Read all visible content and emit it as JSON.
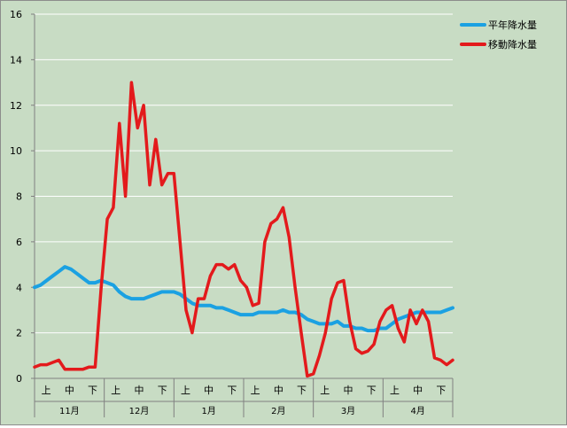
{
  "chart_data": {
    "type": "line",
    "title": "",
    "xlabel": "",
    "ylabel": "",
    "ylim": [
      0,
      16
    ],
    "yticks": [
      "0",
      "2",
      "4",
      "6",
      "8",
      "10",
      "12",
      "14",
      "16"
    ],
    "grid": "horizontal",
    "legend_position": "top-right",
    "plot_background": "#c8dcc4",
    "months": [
      "11月",
      "12月",
      "1月",
      "2月",
      "3月",
      "4月"
    ],
    "dekads": [
      "上",
      "中",
      "下"
    ],
    "series": [
      {
        "name": "平年降水量",
        "color": "#1ba1e2",
        "values": [
          4.0,
          4.1,
          4.3,
          4.5,
          4.7,
          4.9,
          4.8,
          4.6,
          4.4,
          4.2,
          4.2,
          4.3,
          4.2,
          4.1,
          3.8,
          3.6,
          3.5,
          3.5,
          3.5,
          3.6,
          3.7,
          3.8,
          3.8,
          3.8,
          3.7,
          3.5,
          3.3,
          3.2,
          3.2,
          3.2,
          3.1,
          3.1,
          3.0,
          2.9,
          2.8,
          2.8,
          2.8,
          2.9,
          2.9,
          2.9,
          2.9,
          3.0,
          2.9,
          2.9,
          2.8,
          2.6,
          2.5,
          2.4,
          2.4,
          2.4,
          2.5,
          2.3,
          2.3,
          2.2,
          2.2,
          2.1,
          2.1,
          2.2,
          2.2,
          2.4,
          2.6,
          2.7,
          2.8,
          2.9,
          2.9,
          2.9,
          2.9,
          2.9,
          3.0,
          3.1
        ]
      },
      {
        "name": "移動降水量",
        "color": "#e31a1c",
        "values": [
          0.5,
          0.6,
          0.6,
          0.7,
          0.8,
          0.4,
          0.4,
          0.4,
          0.4,
          0.5,
          0.5,
          4.0,
          7.0,
          7.5,
          11.2,
          8.0,
          13.0,
          11.0,
          12.0,
          8.5,
          10.5,
          8.5,
          9.0,
          9.0,
          6.0,
          3.0,
          2.0,
          3.5,
          3.5,
          4.5,
          5.0,
          5.0,
          4.8,
          5.0,
          4.3,
          4.0,
          3.2,
          3.3,
          6.0,
          6.8,
          7.0,
          7.5,
          6.2,
          4.0,
          2.0,
          0.1,
          0.2,
          1.0,
          2.0,
          3.5,
          4.2,
          4.3,
          2.5,
          1.3,
          1.1,
          1.2,
          1.5,
          2.5,
          3.0,
          3.2,
          2.2,
          1.6,
          3.0,
          2.4,
          3.0,
          2.5,
          0.9,
          0.8,
          0.6,
          0.8
        ]
      }
    ]
  }
}
